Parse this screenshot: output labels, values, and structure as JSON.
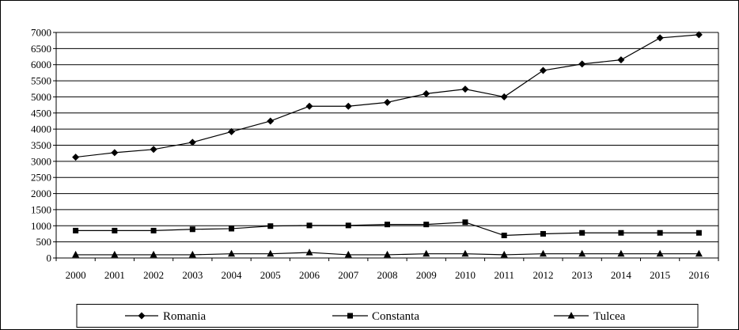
{
  "chart_data": {
    "type": "line",
    "title": "",
    "xlabel": "",
    "ylabel": "",
    "categories": [
      "2000",
      "2001",
      "2002",
      "2003",
      "2004",
      "2005",
      "2006",
      "2007",
      "2008",
      "2009",
      "2010",
      "2011",
      "2012",
      "2013",
      "2014",
      "2015",
      "2016"
    ],
    "ylim": [
      0,
      7000
    ],
    "yticks": [
      0,
      500,
      1000,
      1500,
      2000,
      2500,
      3000,
      3500,
      4000,
      4500,
      5000,
      5500,
      6000,
      6500,
      7000
    ],
    "grid": "horizontal",
    "legend_position": "bottom",
    "line_color": "#000000",
    "series": [
      {
        "name": "Romania",
        "marker": "diamond",
        "values": [
          3130,
          3270,
          3370,
          3590,
          3920,
          4250,
          4710,
          4710,
          4830,
          5100,
          5240,
          5000,
          5820,
          6020,
          6150,
          6830,
          6930
        ]
      },
      {
        "name": "Constanta",
        "marker": "square",
        "values": [
          850,
          850,
          850,
          890,
          910,
          990,
          1010,
          1010,
          1040,
          1040,
          1110,
          700,
          750,
          780,
          780,
          780,
          780
        ]
      },
      {
        "name": "Tulcea",
        "marker": "triangle",
        "values": [
          100,
          100,
          100,
          100,
          130,
          130,
          170,
          100,
          100,
          130,
          130,
          100,
          130,
          130,
          130,
          130,
          130
        ]
      }
    ]
  }
}
